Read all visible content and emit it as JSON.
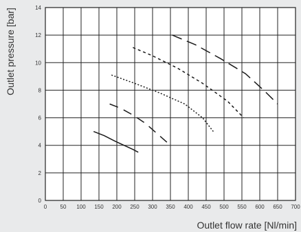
{
  "chart_data": {
    "type": "line",
    "xlabel": "Outlet flow rate [Nl/min]",
    "ylabel": "Outlet pressure [bar]",
    "xlim": [
      0,
      700
    ],
    "ylim": [
      0,
      14
    ],
    "xticks": [
      0,
      50,
      100,
      150,
      200,
      250,
      300,
      350,
      400,
      450,
      500,
      550,
      600,
      650,
      700
    ],
    "yticks": [
      0,
      2,
      4,
      6,
      8,
      10,
      12,
      14
    ],
    "grid": true,
    "series": [
      {
        "style": "solid",
        "x": [
          135,
          165,
          195,
          220,
          245,
          260
        ],
        "y": [
          5.0,
          4.7,
          4.3,
          4.0,
          3.7,
          3.5
        ]
      },
      {
        "style": "long-dash",
        "x": [
          180,
          210,
          245,
          280,
          315,
          350
        ],
        "y": [
          7.0,
          6.7,
          6.2,
          5.6,
          4.8,
          4.0
        ]
      },
      {
        "style": "dot",
        "x": [
          185,
          250,
          320,
          390,
          440,
          470
        ],
        "y": [
          9.1,
          8.5,
          7.8,
          7.0,
          6.0,
          5.0
        ]
      },
      {
        "style": "short-dash",
        "x": [
          245,
          300,
          370,
          440,
          510,
          555
        ],
        "y": [
          11.1,
          10.5,
          9.6,
          8.5,
          7.2,
          6.0
        ]
      },
      {
        "style": "xlong-dash",
        "x": [
          355,
          420,
          490,
          560,
          615,
          650
        ],
        "y": [
          12.0,
          11.3,
          10.3,
          9.2,
          7.9,
          7.0
        ]
      }
    ]
  }
}
